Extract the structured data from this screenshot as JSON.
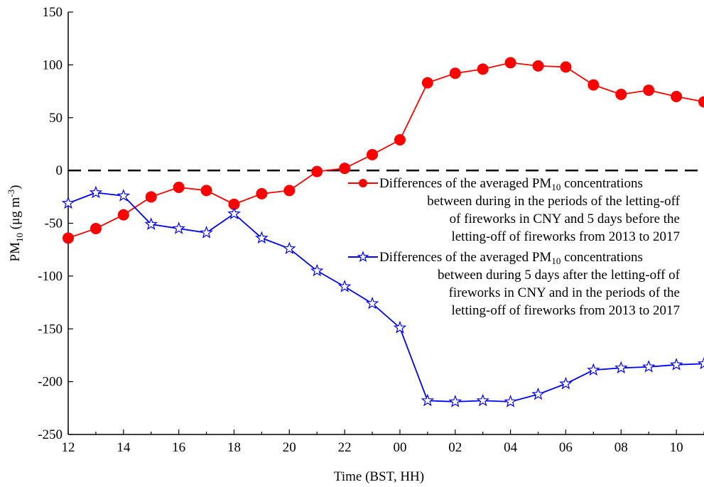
{
  "chart_data": {
    "type": "line",
    "xlabel": "Time (BST, HH)",
    "ylabel": "PM10 (μg m-3)",
    "ylabel_parts": {
      "base": "PM",
      "sub": "10",
      "unit_open": " (μg m",
      "sup": "-3",
      "unit_close": ")"
    },
    "ylim": [
      -250,
      150
    ],
    "yticks": [
      -250,
      -200,
      -150,
      -100,
      -50,
      0,
      50,
      100,
      150
    ],
    "ytick_labels": [
      "-250",
      "-200",
      "-150",
      "-100",
      "-50",
      "0",
      "50",
      "100",
      "150"
    ],
    "x": [
      "12",
      "13",
      "14",
      "15",
      "16",
      "17",
      "18",
      "19",
      "20",
      "21",
      "22",
      "23",
      "00",
      "01",
      "02",
      "03",
      "04",
      "05",
      "06",
      "07",
      "08",
      "09",
      "10",
      "11"
    ],
    "xtick_labels": [
      "12",
      "14",
      "16",
      "18",
      "20",
      "22",
      "00",
      "02",
      "04",
      "06",
      "08",
      "10"
    ],
    "reference_line": {
      "y": 0,
      "style": "dashed"
    },
    "grid": false,
    "legend_position": "right",
    "series": [
      {
        "legend_lines": [
          "Differences of the averaged PM10 concentrations",
          "between during in the periods of the letting-off",
          "of fireworks in CNY and 5 days before the",
          "letting-off of fireworks from 2013 to 2017"
        ],
        "color": "#ff0000",
        "marker": "filled-circle",
        "values": [
          -64,
          -55,
          -42,
          -25,
          -16,
          -19,
          -32,
          -22,
          -19,
          -1,
          2,
          15,
          29,
          83,
          92,
          96,
          102,
          99,
          98,
          81,
          72,
          76,
          70,
          65
        ]
      },
      {
        "legend_lines": [
          "Differences of the averaged PM10 concentrations",
          "between during 5 days after the letting-off of",
          "fireworks in CNY and in the periods of the",
          "letting-off of fireworks from 2013 to 2017"
        ],
        "color": "#0000ff",
        "marker": "open-star",
        "values": [
          -31,
          -21,
          -24,
          -51,
          -55,
          -59,
          -41,
          -64,
          -74,
          -95,
          -110,
          -126,
          -149,
          -218,
          -219,
          -218,
          -219,
          -212,
          -202,
          -189,
          -187,
          -186,
          -184,
          -183
        ]
      }
    ]
  }
}
